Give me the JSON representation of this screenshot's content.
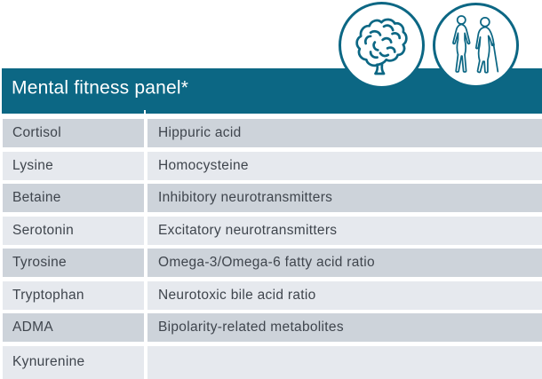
{
  "panel": {
    "title": "Mental fitness panel*"
  },
  "badges": [
    {
      "icon": "brain-icon"
    },
    {
      "icon": "woman-and-elderly-man-icon"
    }
  ],
  "table": {
    "rows": [
      {
        "left": "Cortisol",
        "right": "Hippuric acid"
      },
      {
        "left": "Lysine",
        "right": "Homocysteine"
      },
      {
        "left": "Betaine",
        "right": "Inhibitory neurotransmitters"
      },
      {
        "left": "Serotonin",
        "right": "Excitatory neurotransmitters"
      },
      {
        "left": "Tyrosine",
        "right": "Omega-3/Omega-6 fatty acid ratio"
      },
      {
        "left": "Tryptophan",
        "right": "Neurotoxic bile acid ratio"
      },
      {
        "left": "ADMA",
        "right": "Bipolarity-related metabolites"
      },
      {
        "left": "Kynurenine",
        "right": ""
      }
    ]
  },
  "colors": {
    "teal": "#0c6784",
    "row_dark": "#cdd3da",
    "row_light": "#e6e9ee",
    "text": "#3f454d"
  }
}
